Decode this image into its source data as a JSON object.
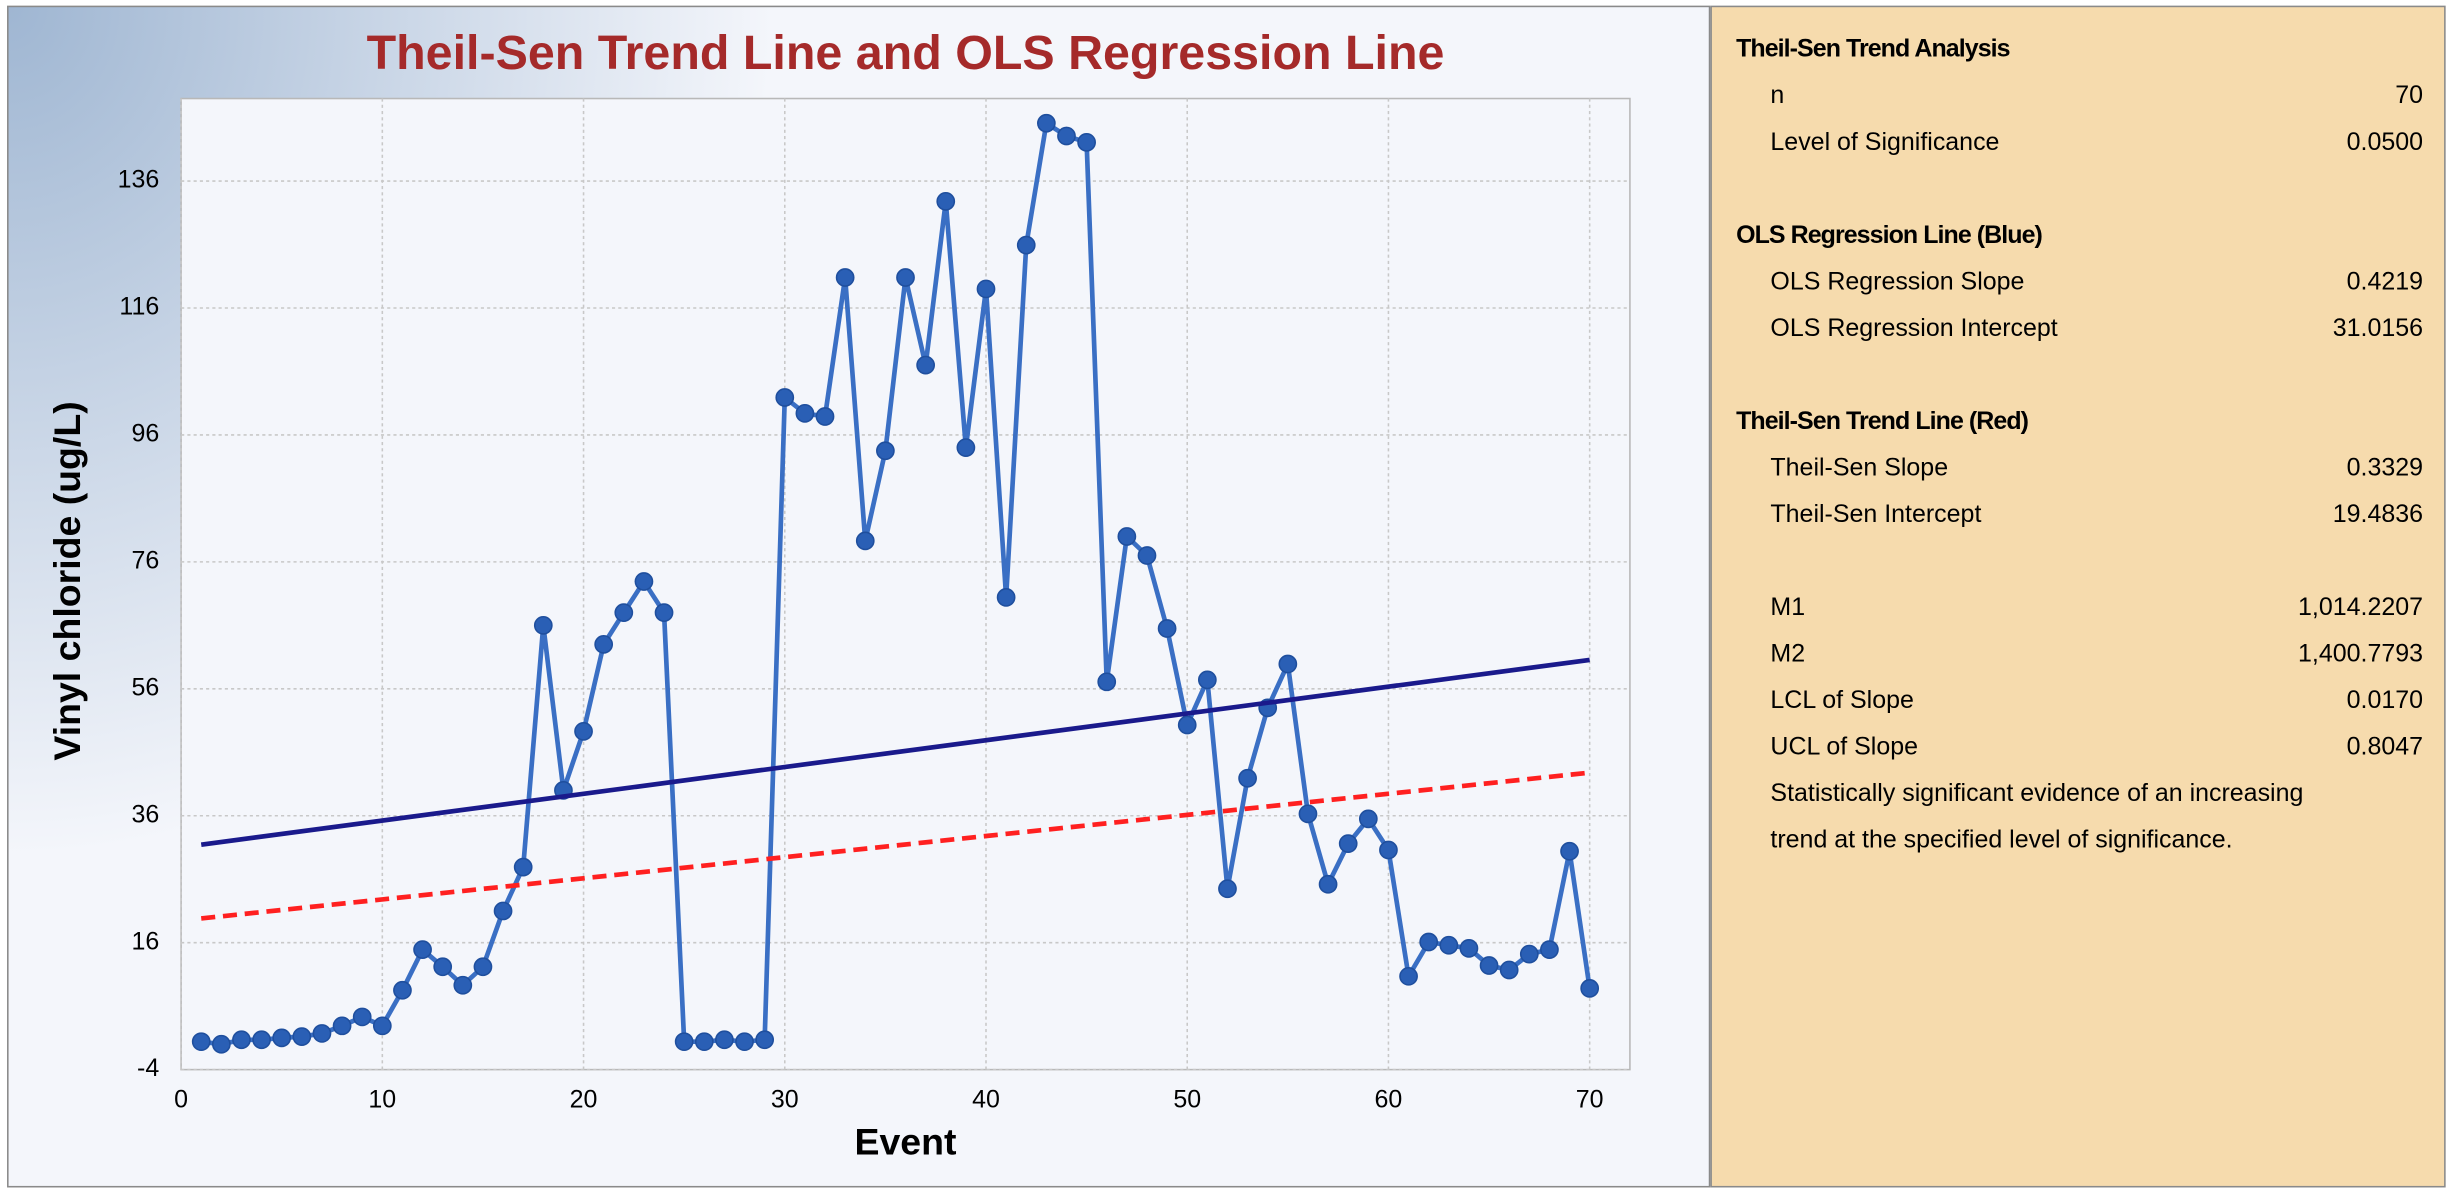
{
  "chart_data": {
    "type": "line",
    "title": "Theil-Sen Trend Line and OLS Regression Line",
    "x_label": "Event",
    "y_label": "Vinyl chloride (ug/L)",
    "xlim": [
      0,
      72
    ],
    "ylim": [
      -4,
      149
    ],
    "xticks": [
      0,
      10,
      20,
      30,
      40,
      50,
      60,
      70
    ],
    "yticks": [
      -4,
      16,
      36,
      56,
      76,
      96,
      116,
      136
    ],
    "grid": true,
    "series": [
      {
        "color": "#3a6fc4",
        "markers": true,
        "x": [
          1,
          2,
          3,
          4,
          5,
          6,
          7,
          8,
          9,
          10,
          11,
          12,
          13,
          14,
          15,
          16,
          17,
          18,
          19,
          20,
          21,
          22,
          23,
          24,
          25,
          26,
          27,
          28,
          29,
          30,
          31,
          32,
          33,
          34,
          35,
          36,
          37,
          38,
          39,
          40,
          41,
          42,
          43,
          44,
          45,
          46,
          47,
          48,
          49,
          50,
          51,
          52,
          53,
          54,
          55,
          56,
          57,
          58,
          59,
          60,
          61,
          62,
          63,
          64,
          65,
          66,
          67,
          68,
          69,
          70
        ],
        "values": [
          0.4,
          0,
          0.7,
          0.7,
          1,
          1.2,
          1.7,
          2.9,
          4.3,
          2.9,
          8.5,
          14.9,
          12.2,
          9.3,
          12.2,
          21,
          27.9,
          66,
          40,
          49.3,
          63,
          68,
          72.9,
          68,
          0.4,
          0.4,
          0.7,
          0.4,
          0.7,
          101.9,
          99.4,
          98.9,
          120.8,
          79.3,
          93.5,
          120.8,
          107,
          132.8,
          94,
          119,
          70.4,
          125.9,
          145.1,
          143.1,
          142.1,
          57.1,
          80,
          77,
          65.5,
          50.3,
          57.4,
          24.5,
          41.9,
          53,
          59.9,
          36.3,
          25.2,
          31.6,
          35.5,
          30.6,
          10.7,
          16.1,
          15.6,
          15.1,
          12.4,
          11.7,
          14.2,
          14.9,
          30.4,
          8.8
        ]
      },
      {
        "color": "#1a1a8c",
        "markers": false,
        "x": [
          1,
          70
        ],
        "values": [
          31.44,
          60.55
        ]
      },
      {
        "color": "#ff2020",
        "markers": false,
        "dashed": true,
        "x": [
          1,
          70
        ],
        "values": [
          19.82,
          42.79
        ]
      }
    ]
  },
  "panel": {
    "sections": [
      {
        "title": "Theil-Sen Trend Analysis",
        "rows": [
          [
            "n",
            "70"
          ],
          [
            "Level of Significance",
            "0.0500"
          ]
        ]
      },
      {
        "title": "OLS Regression Line (Blue)",
        "rows": [
          [
            "OLS Regression Slope",
            "0.4219"
          ],
          [
            "OLS Regression Intercept",
            "31.0156"
          ]
        ]
      },
      {
        "title": "Theil-Sen Trend Line (Red)",
        "rows": [
          [
            "Theil-Sen Slope",
            "0.3329"
          ],
          [
            "Theil-Sen Intercept",
            "19.4836"
          ]
        ]
      },
      {
        "rows": [
          [
            "M1",
            "1,014.2207"
          ],
          [
            "M2",
            "1,400.7793"
          ],
          [
            "LCL of Slope",
            "0.0170"
          ],
          [
            "UCL of Slope",
            "0.8047"
          ]
        ],
        "notes": [
          "Statistically significant evidence of an increasing",
          "trend at the specified level of significance."
        ]
      }
    ]
  }
}
